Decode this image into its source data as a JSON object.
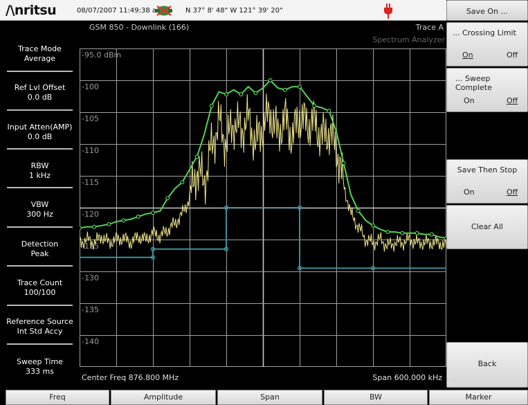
{
  "status_bar": {
    "brand": "/\\nritsu",
    "datetime": "08/07/2007 11:49:38 am",
    "gps_icon": "gps-satellite-icon",
    "coordinates": "N 37° 8' 48\" W 121° 39' 20\"",
    "power_icon": "power-plug-icon"
  },
  "header": {
    "measurement": "GSM 850 - Downlink (166)",
    "trace": "Trace A",
    "app": "Spectrum Analyzer"
  },
  "sidebar": {
    "params": [
      {
        "label": "Trace Mode",
        "value": "Average"
      },
      {
        "label": "Ref Lvl Offset",
        "value": "0.0 dB"
      },
      {
        "label": "Input Atten(AMP)",
        "value": "0.0 dB"
      },
      {
        "label": "RBW",
        "value": "1 kHz"
      },
      {
        "label": "VBW",
        "value": "300 Hz"
      },
      {
        "label": "Detection",
        "value": "Peak"
      },
      {
        "label": "Trace Count",
        "value": "100/100"
      },
      {
        "label": "Reference Source",
        "value": "Int Std Accy"
      },
      {
        "label": "Sweep Time",
        "value": "333 ms"
      }
    ]
  },
  "plot": {
    "y_labels": [
      "-95.0 dBm",
      "-100",
      "-105",
      "-110",
      "-115",
      "-120",
      "-125",
      "-130",
      "-135",
      "-140"
    ],
    "ylim": [
      -145,
      -95
    ],
    "divisions_x": 10,
    "divisions_y": 10,
    "colors": {
      "grid": "#a0a0a0",
      "green_trace": "#55d255",
      "yellow_trace": "#f0e68c",
      "limit_line": "#3f8f9a",
      "background": "#000000"
    }
  },
  "footer": {
    "center_freq": "Center Freq 876.800 MHz",
    "span": "Span 600.000 kHz"
  },
  "softkeys": {
    "title": "Save On ...",
    "crossing_limit": {
      "label": "... Crossing Limit",
      "on": "On",
      "off": "Off"
    },
    "sweep_complete": {
      "label": "... Sweep Complete",
      "on": "On",
      "off": "Off"
    },
    "save_then_stop": {
      "label": "Save Then Stop",
      "on": "On",
      "off": "Off"
    },
    "clear_all": "Clear All",
    "back": "Back",
    "back_arrow": "<--"
  },
  "bottom_menu": [
    "Freq",
    "Amplitude",
    "Span",
    "BW",
    "Marker"
  ],
  "chart_data": {
    "type": "line",
    "x_label": "",
    "ylim": [
      -145,
      -95
    ],
    "x": [
      0,
      0.2,
      0.4,
      0.6,
      0.8,
      1.0,
      1.2,
      1.4,
      1.6,
      1.8,
      2.0,
      2.2,
      2.4,
      2.6,
      2.8,
      3.0,
      3.2,
      3.4,
      3.6,
      3.8,
      4.0,
      4.2,
      4.4,
      4.6,
      4.8,
      5.0,
      5.2,
      5.4,
      5.6,
      5.8,
      6.0,
      6.2,
      6.4,
      6.6,
      6.8,
      7.0,
      7.2,
      7.4,
      7.6,
      7.8,
      8.0,
      8.2,
      8.4,
      8.6,
      8.8,
      9.0,
      9.2,
      9.4,
      9.6,
      9.8,
      10.0
    ],
    "series": [
      {
        "values": [
          -123.2,
          -123.0,
          -123.0,
          -122.8,
          -122.6,
          -122.2,
          -122.0,
          -121.8,
          -121.4,
          -121.0,
          -120.8,
          -120.5,
          -118.5,
          -117.0,
          -116.0,
          -114.0,
          -112.0,
          -108.5,
          -104.0,
          -101.8,
          -102.2,
          -101.5,
          -102.2,
          -101.0,
          -102.0,
          -101.2,
          -100.0,
          -101.2,
          -101.5,
          -101.0,
          -101.0,
          -102.5,
          -104.0,
          -104.3,
          -104.8,
          -108.0,
          -113.0,
          -118.0,
          -120.5,
          -122.0,
          -122.8,
          -123.4,
          -123.8,
          -123.8,
          -124.0,
          -124.0,
          -124.0,
          -124.2,
          -124.2,
          -124.6,
          -124.8
        ]
      },
      {
        "values": [
          -125.5,
          -125.0,
          -125.5,
          -124.5,
          -125.5,
          -125.0,
          -124.8,
          -125.5,
          -124.5,
          -125.0,
          -124.0,
          -124.5,
          -123.5,
          -122.5,
          -121.0,
          -118.5,
          -114.0,
          -116.0,
          -110.5,
          -106.5,
          -110.0,
          -106.5,
          -108.0,
          -106.0,
          -110.0,
          -107.0,
          -105.0,
          -108.5,
          -106.0,
          -109.0,
          -105.5,
          -107.0,
          -106.5,
          -109.0,
          -108.0,
          -110.5,
          -116.5,
          -121.0,
          -123.0,
          -125.0,
          -125.5,
          -125.0,
          -126.0,
          -125.5,
          -125.5,
          -125.0,
          -125.5,
          -125.5,
          -125.5,
          -125.5,
          -126.0
        ]
      }
    ],
    "limit_line": {
      "x": [
        0,
        2.0,
        2.0,
        4.0,
        4.0,
        6.0,
        6.0,
        8.0,
        10.0
      ],
      "values": [
        -127.8,
        -127.8,
        -126.5,
        -126.5,
        -120.0,
        -120.0,
        -129.5,
        -129.5,
        -129.5
      ]
    }
  }
}
